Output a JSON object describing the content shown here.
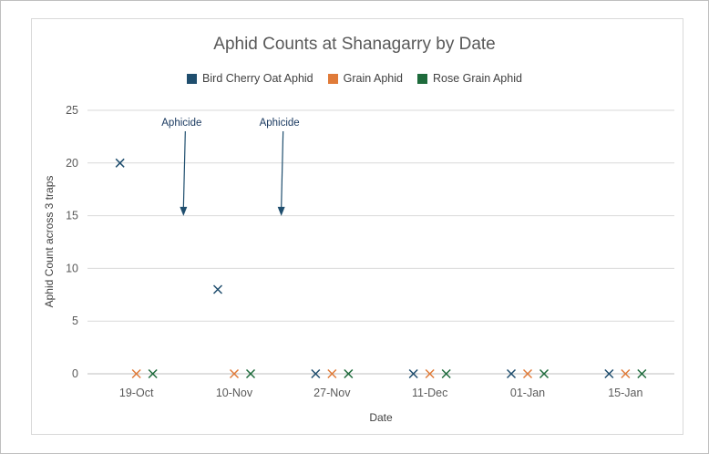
{
  "chart_data": {
    "type": "scatter",
    "title": "Aphid Counts at Shanagarry by Date",
    "xlabel": "Date",
    "ylabel": "Aphid Count across 3 traps",
    "categories": [
      "19-Oct",
      "10-Nov",
      "27-Nov",
      "11-Dec",
      "01-Jan",
      "15-Jan"
    ],
    "ylim": [
      0,
      25
    ],
    "yticks": [
      0,
      5,
      10,
      15,
      20,
      25
    ],
    "grid": true,
    "legend_position": "top",
    "series": [
      {
        "name": "Bird Cherry Oat Aphid",
        "color": "#1f4e6e",
        "values": [
          20,
          8,
          0,
          0,
          0,
          0
        ]
      },
      {
        "name": "Grain Aphid",
        "color": "#e07b39",
        "values": [
          0,
          0,
          0,
          0,
          0,
          0
        ]
      },
      {
        "name": "Rose Grain Aphid",
        "color": "#1e6b3c",
        "values": [
          0,
          0,
          0,
          0,
          0,
          0
        ]
      }
    ],
    "annotations": [
      {
        "text": "Aphicide",
        "between": [
          "19-Oct",
          "10-Nov"
        ],
        "points_to_y": 15.5
      },
      {
        "text": "Aphicide",
        "between": [
          "10-Nov",
          "27-Nov"
        ],
        "points_to_y": 15.5
      }
    ]
  }
}
